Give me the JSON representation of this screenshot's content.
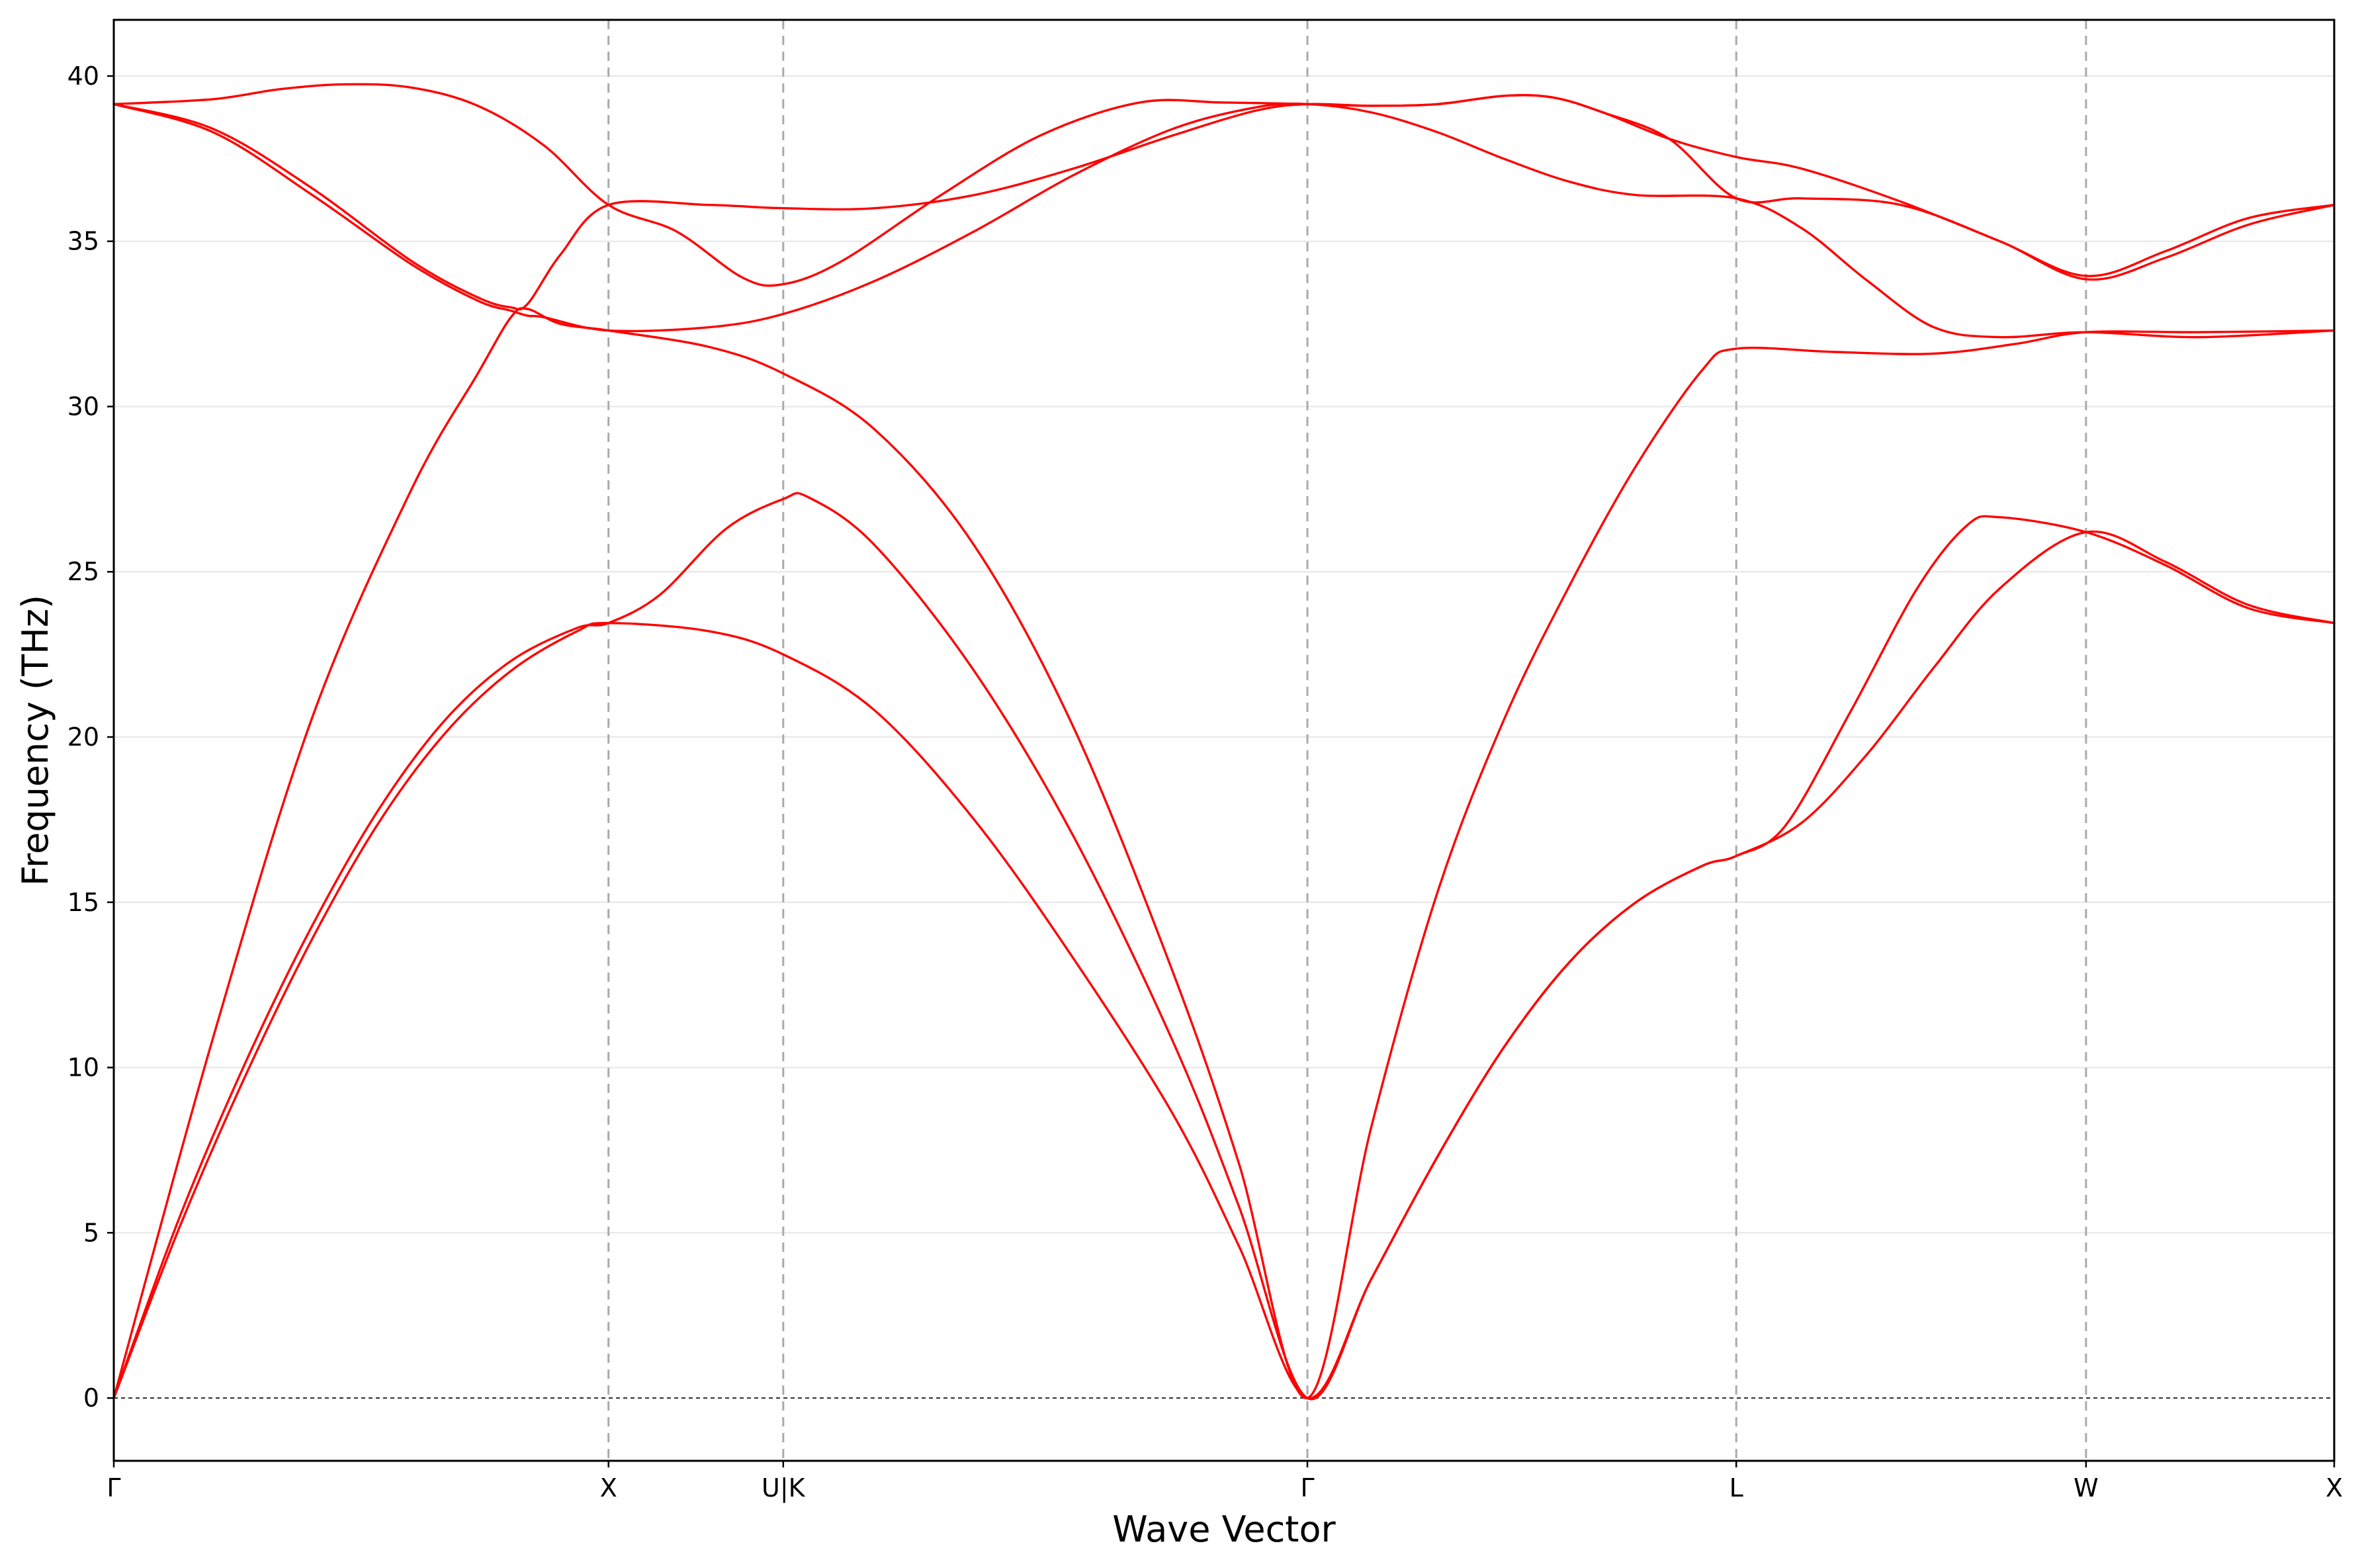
{
  "chart_data": {
    "type": "line",
    "title": "",
    "xlabel": "Wave Vector",
    "ylabel": "Frequency (THz)",
    "ylim": [
      -1.9,
      41.7
    ],
    "yticks": [
      0,
      5,
      10,
      15,
      20,
      25,
      30,
      35,
      40
    ],
    "xlim": [
      0,
      6.71
    ],
    "high_symmetry_points": [
      {
        "label": "Γ",
        "x": 0
      },
      {
        "label": "X",
        "x": 1.495
      },
      {
        "label": "U|K",
        "x": 2.023
      },
      {
        "label": "Γ",
        "x": 3.607
      },
      {
        "label": "L",
        "x": 4.903
      },
      {
        "label": "W",
        "x": 5.96
      },
      {
        "label": "X",
        "x": 6.71
      }
    ],
    "grid": "horizontal",
    "legend": "none",
    "line_color": "#ff0000",
    "series": [
      {
        "values": [
          [
            0,
            0
          ],
          [
            0.2,
            5.2
          ],
          [
            0.4,
            9.8
          ],
          [
            0.6,
            13.9
          ],
          [
            0.8,
            17.4
          ],
          [
            1.0,
            20.1
          ],
          [
            1.2,
            22.0
          ],
          [
            1.4,
            23.2
          ],
          [
            1.495,
            23.45
          ],
          [
            1.8,
            23.2
          ],
          [
            2.023,
            22.5
          ],
          [
            2.3,
            20.8
          ],
          [
            2.6,
            17.5
          ],
          [
            2.9,
            13.3
          ],
          [
            3.2,
            8.6
          ],
          [
            3.4,
            4.6
          ],
          [
            3.607,
            0
          ],
          [
            3.8,
            3.6
          ],
          [
            4.0,
            7.3
          ],
          [
            4.2,
            10.6
          ],
          [
            4.4,
            13.2
          ],
          [
            4.6,
            15.0
          ],
          [
            4.8,
            16.1
          ],
          [
            4.903,
            16.4
          ],
          [
            5.1,
            17.4
          ],
          [
            5.3,
            19.5
          ],
          [
            5.5,
            22.1
          ],
          [
            5.7,
            24.5
          ],
          [
            5.96,
            26.2
          ],
          [
            6.2,
            25.3
          ],
          [
            6.45,
            24.0
          ],
          [
            6.71,
            23.45
          ]
        ]
      },
      {
        "values": [
          [
            0,
            0
          ],
          [
            0.2,
            5.5
          ],
          [
            0.4,
            10.2
          ],
          [
            0.6,
            14.3
          ],
          [
            0.8,
            17.8
          ],
          [
            1.0,
            20.5
          ],
          [
            1.2,
            22.3
          ],
          [
            1.4,
            23.3
          ],
          [
            1.495,
            23.45
          ],
          [
            1.65,
            24.3
          ],
          [
            1.85,
            26.3
          ],
          [
            2.023,
            27.2
          ],
          [
            2.1,
            27.25
          ],
          [
            2.3,
            25.8
          ],
          [
            2.6,
            22.0
          ],
          [
            2.9,
            17.0
          ],
          [
            3.2,
            10.8
          ],
          [
            3.4,
            5.8
          ],
          [
            3.607,
            0
          ],
          [
            3.8,
            3.6
          ],
          [
            4.0,
            7.3
          ],
          [
            4.2,
            10.6
          ],
          [
            4.4,
            13.2
          ],
          [
            4.6,
            15.0
          ],
          [
            4.8,
            16.1
          ],
          [
            4.903,
            16.4
          ],
          [
            5.05,
            17.3
          ],
          [
            5.25,
            20.8
          ],
          [
            5.45,
            24.5
          ],
          [
            5.6,
            26.4
          ],
          [
            5.7,
            26.65
          ],
          [
            5.96,
            26.2
          ],
          [
            6.2,
            25.2
          ],
          [
            6.45,
            23.9
          ],
          [
            6.71,
            23.45
          ]
        ]
      },
      {
        "values": [
          [
            0,
            0
          ],
          [
            0.3,
            10.9
          ],
          [
            0.6,
            20.6
          ],
          [
            0.9,
            27.5
          ],
          [
            1.1,
            31.0
          ],
          [
            1.2,
            32.7
          ],
          [
            1.25,
            32.95
          ],
          [
            1.35,
            32.5
          ],
          [
            1.495,
            32.3
          ],
          [
            1.8,
            31.8
          ],
          [
            2.023,
            31.0
          ],
          [
            2.3,
            29.3
          ],
          [
            2.6,
            25.8
          ],
          [
            2.9,
            20.3
          ],
          [
            3.2,
            12.9
          ],
          [
            3.4,
            7.1
          ],
          [
            3.607,
            0
          ],
          [
            3.8,
            8.2
          ],
          [
            4.0,
            15.3
          ],
          [
            4.2,
            20.5
          ],
          [
            4.4,
            24.6
          ],
          [
            4.6,
            28.2
          ],
          [
            4.8,
            31.1
          ],
          [
            4.903,
            31.75
          ],
          [
            5.2,
            31.65
          ],
          [
            5.5,
            31.6
          ],
          [
            5.75,
            31.9
          ],
          [
            5.96,
            32.25
          ],
          [
            6.3,
            32.25
          ],
          [
            6.71,
            32.3
          ]
        ]
      },
      {
        "values": [
          [
            0,
            39.15
          ],
          [
            0.3,
            38.3
          ],
          [
            0.6,
            36.4
          ],
          [
            0.9,
            34.3
          ],
          [
            1.1,
            33.2
          ],
          [
            1.2,
            32.9
          ],
          [
            1.25,
            32.75
          ],
          [
            1.3,
            32.7
          ],
          [
            1.495,
            32.3
          ],
          [
            1.8,
            32.4
          ],
          [
            2.023,
            32.8
          ],
          [
            2.3,
            33.8
          ],
          [
            2.6,
            35.3
          ],
          [
            2.9,
            37.0
          ],
          [
            3.2,
            38.4
          ],
          [
            3.45,
            39.05
          ],
          [
            3.607,
            39.15
          ],
          [
            3.8,
            38.9
          ],
          [
            4.0,
            38.3
          ],
          [
            4.2,
            37.5
          ],
          [
            4.4,
            36.8
          ],
          [
            4.6,
            36.4
          ],
          [
            4.903,
            36.3
          ],
          [
            5.1,
            35.4
          ],
          [
            5.3,
            33.8
          ],
          [
            5.5,
            32.4
          ],
          [
            5.7,
            32.1
          ],
          [
            5.96,
            32.25
          ],
          [
            6.3,
            32.1
          ],
          [
            6.71,
            32.3
          ]
        ]
      },
      {
        "values": [
          [
            0,
            39.15
          ],
          [
            0.3,
            38.4
          ],
          [
            0.6,
            36.6
          ],
          [
            0.9,
            34.4
          ],
          [
            1.1,
            33.3
          ],
          [
            1.2,
            33.0
          ],
          [
            1.25,
            33.1
          ],
          [
            1.35,
            34.6
          ],
          [
            1.495,
            36.1
          ],
          [
            1.8,
            36.1
          ],
          [
            2.023,
            36.0
          ],
          [
            2.3,
            36.0
          ],
          [
            2.6,
            36.4
          ],
          [
            2.9,
            37.2
          ],
          [
            3.2,
            38.2
          ],
          [
            3.45,
            38.95
          ],
          [
            3.607,
            39.15
          ],
          [
            3.8,
            39.1
          ],
          [
            4.0,
            39.15
          ],
          [
            4.2,
            39.4
          ],
          [
            4.35,
            39.35
          ],
          [
            4.5,
            38.9
          ],
          [
            4.7,
            38.1
          ],
          [
            4.903,
            37.55
          ],
          [
            5.1,
            37.2
          ],
          [
            5.4,
            36.2
          ],
          [
            5.7,
            35.0
          ],
          [
            5.96,
            33.95
          ],
          [
            6.2,
            34.7
          ],
          [
            6.45,
            35.7
          ],
          [
            6.71,
            36.1
          ]
        ]
      },
      {
        "values": [
          [
            0,
            39.15
          ],
          [
            0.3,
            39.3
          ],
          [
            0.5,
            39.6
          ],
          [
            0.7,
            39.75
          ],
          [
            0.9,
            39.65
          ],
          [
            1.1,
            39.1
          ],
          [
            1.3,
            37.9
          ],
          [
            1.495,
            36.1
          ],
          [
            1.7,
            35.3
          ],
          [
            1.9,
            33.9
          ],
          [
            2.023,
            33.7
          ],
          [
            2.2,
            34.4
          ],
          [
            2.5,
            36.4
          ],
          [
            2.8,
            38.2
          ],
          [
            3.1,
            39.2
          ],
          [
            3.35,
            39.2
          ],
          [
            3.607,
            39.15
          ],
          [
            3.8,
            39.1
          ],
          [
            4.0,
            39.15
          ],
          [
            4.2,
            39.4
          ],
          [
            4.35,
            39.35
          ],
          [
            4.5,
            38.9
          ],
          [
            4.7,
            38.1
          ],
          [
            4.903,
            36.3
          ],
          [
            5.1,
            36.3
          ],
          [
            5.4,
            36.1
          ],
          [
            5.7,
            35.0
          ],
          [
            5.96,
            33.85
          ],
          [
            6.2,
            34.5
          ],
          [
            6.45,
            35.5
          ],
          [
            6.71,
            36.1
          ]
        ]
      }
    ]
  }
}
